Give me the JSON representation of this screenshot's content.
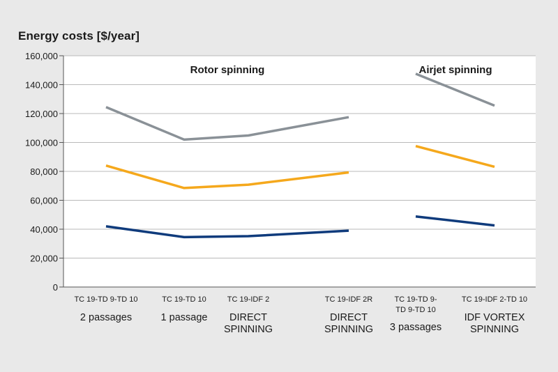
{
  "chart_data": {
    "type": "line",
    "title": "Energy costs [$/year]",
    "ylim": [
      0,
      160000
    ],
    "yticks": [
      0,
      20000,
      40000,
      60000,
      80000,
      100000,
      120000,
      140000,
      160000
    ],
    "ytick_labels": [
      "0",
      "20,000",
      "40,000",
      "60,000",
      "80,000",
      "100,000",
      "120,000",
      "140,000",
      "160,000"
    ],
    "grid": true,
    "categories": [
      {
        "label": "TC 19-TD 9-TD 10",
        "sublabel": "2 passages"
      },
      {
        "label": "TC 19-TD 10",
        "sublabel": "1 passage"
      },
      {
        "label": "TC 19-IDF 2",
        "sublabel": "DIRECT SPINNING"
      },
      {
        "label": "TC 19-IDF 2R",
        "sublabel": "DIRECT SPINNING"
      },
      {
        "label": "TC 19-TD 9-TD 9-TD 10",
        "sublabel": "3 passages"
      },
      {
        "label": "TC 19-IDF 2-TD 10",
        "sublabel": "IDF VORTEX SPINNING"
      }
    ],
    "groups": [
      {
        "label": "Rotor spinning",
        "categories": [
          0,
          1,
          2,
          3
        ]
      },
      {
        "label": "Airjet spinning",
        "categories": [
          4,
          5
        ]
      }
    ],
    "series": [
      {
        "color": "#8a9197",
        "values": [
          124500,
          102000,
          104800,
          117500,
          147500,
          125500
        ]
      },
      {
        "color": "#f5a81c",
        "values": [
          84000,
          68500,
          70800,
          79300,
          97500,
          83200
        ]
      },
      {
        "color": "#0f3b7c",
        "values": [
          42000,
          34500,
          35200,
          39000,
          48800,
          42600
        ]
      }
    ]
  }
}
